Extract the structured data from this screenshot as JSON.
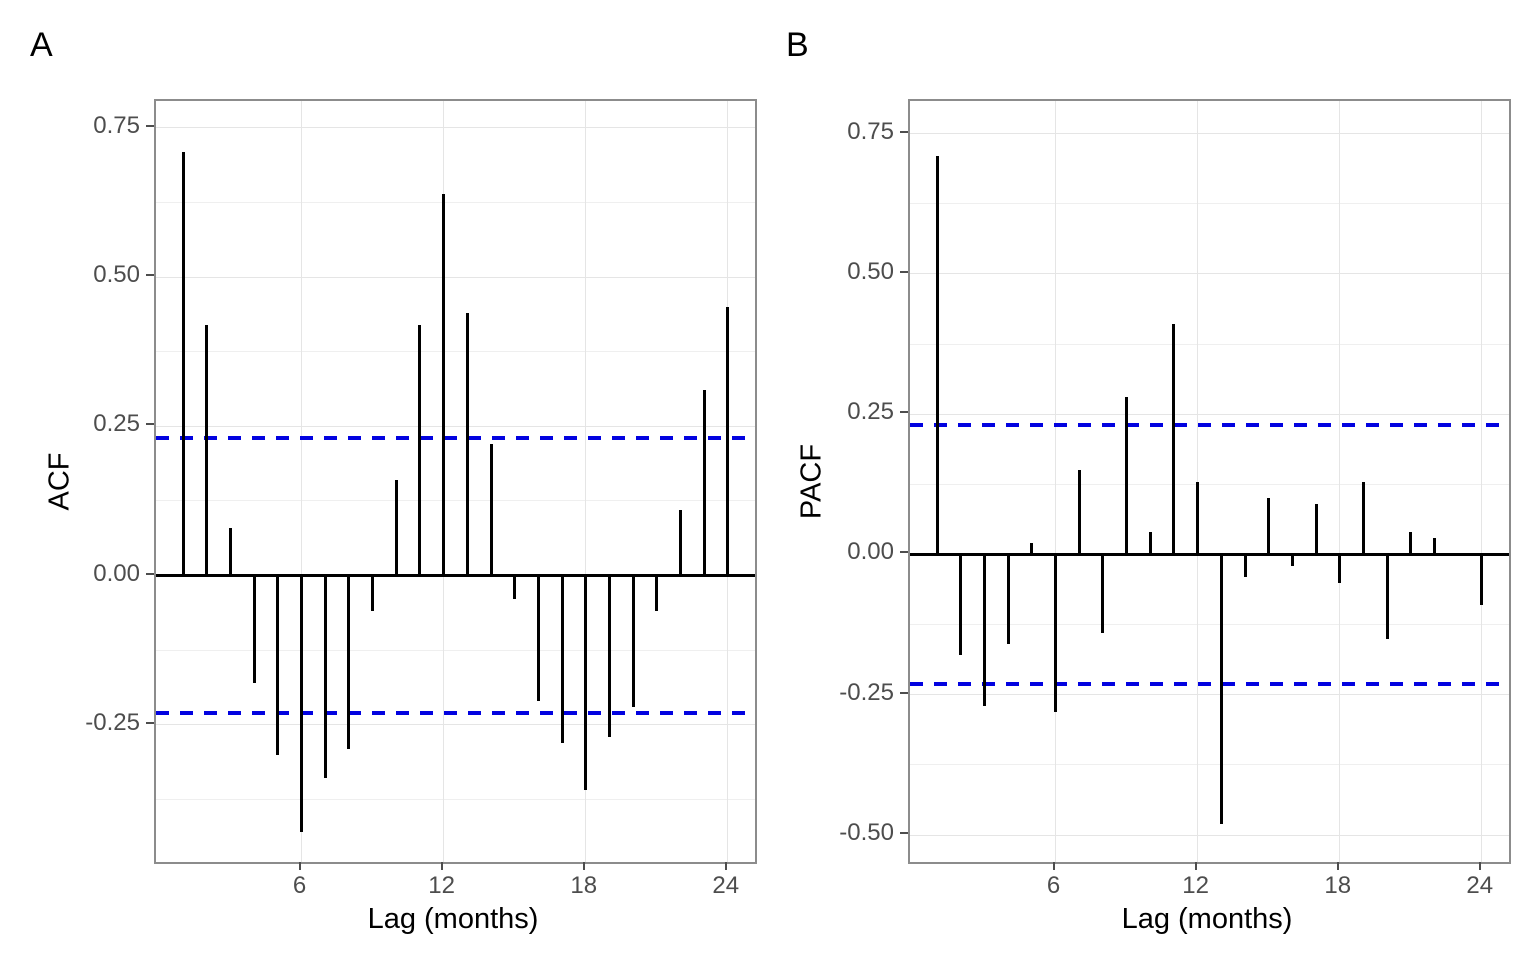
{
  "figure": {
    "background": "#ffffff",
    "bar_color": "#000000",
    "band_color": "#0202e0",
    "panel_tags": {
      "a": "A",
      "b": "B"
    }
  },
  "chart_data": [
    {
      "type": "bar",
      "title": "A",
      "xlabel": "Lag (months)",
      "ylabel": "ACF",
      "x": [
        1,
        2,
        3,
        4,
        5,
        6,
        7,
        8,
        9,
        10,
        11,
        12,
        13,
        14,
        15,
        16,
        17,
        18,
        19,
        20,
        21,
        22,
        23,
        24
      ],
      "values": [
        0.71,
        0.42,
        0.08,
        -0.18,
        -0.3,
        -0.43,
        -0.34,
        -0.29,
        -0.06,
        0.16,
        0.42,
        0.64,
        0.44,
        0.22,
        -0.04,
        -0.21,
        -0.28,
        -0.36,
        -0.27,
        -0.22,
        -0.06,
        0.11,
        0.31,
        0.45
      ],
      "conf_bands": [
        0.23,
        -0.23
      ],
      "conf_band_style": "dashed blue horizontal lines",
      "xlim": [
        -0.15,
        25.15
      ],
      "ylim": [
        -0.48,
        0.795
      ],
      "x_ticks": [
        {
          "value": 6,
          "label": "6"
        },
        {
          "value": 12,
          "label": "12"
        },
        {
          "value": 18,
          "label": "18"
        },
        {
          "value": 24,
          "label": "24"
        }
      ],
      "y_ticks": [
        {
          "value": 0.75,
          "label": "0.75"
        },
        {
          "value": 0.5,
          "label": "0.50"
        },
        {
          "value": 0.25,
          "label": "0.25"
        },
        {
          "value": 0.0,
          "label": "0.00"
        },
        {
          "value": -0.25,
          "label": "-0.25"
        }
      ],
      "y_minor_gridlines": [
        0.625,
        0.375,
        0.125,
        -0.125,
        -0.375
      ],
      "grid": "on",
      "legend": "none",
      "zero_line": true
    },
    {
      "type": "bar",
      "title": "B",
      "xlabel": "Lag (months)",
      "ylabel": "PACF",
      "x": [
        1,
        2,
        3,
        4,
        5,
        6,
        7,
        8,
        9,
        10,
        11,
        12,
        13,
        14,
        15,
        16,
        17,
        18,
        19,
        20,
        21,
        22,
        23,
        24
      ],
      "values": [
        0.71,
        -0.18,
        -0.27,
        -0.16,
        0.02,
        -0.28,
        0.15,
        -0.14,
        0.28,
        0.04,
        0.41,
        0.13,
        -0.48,
        -0.04,
        0.1,
        -0.02,
        0.09,
        -0.05,
        0.13,
        -0.15,
        0.04,
        0.03,
        0.0,
        -0.09
      ],
      "conf_bands": [
        0.23,
        -0.23
      ],
      "conf_band_style": "dashed blue horizontal lines",
      "xlim": [
        -0.15,
        25.15
      ],
      "ylim": [
        -0.548,
        0.808
      ],
      "x_ticks": [
        {
          "value": 6,
          "label": "6"
        },
        {
          "value": 12,
          "label": "12"
        },
        {
          "value": 18,
          "label": "18"
        },
        {
          "value": 24,
          "label": "24"
        }
      ],
      "y_ticks": [
        {
          "value": 0.75,
          "label": "0.75"
        },
        {
          "value": 0.5,
          "label": "0.50"
        },
        {
          "value": 0.25,
          "label": "0.25"
        },
        {
          "value": 0.0,
          "label": "0.00"
        },
        {
          "value": -0.25,
          "label": "-0.25"
        },
        {
          "value": -0.5,
          "label": "-0.50"
        }
      ],
      "y_minor_gridlines": [
        0.625,
        0.375,
        0.125,
        -0.125,
        -0.375
      ],
      "grid": "on",
      "legend": "none",
      "zero_line": true
    }
  ]
}
